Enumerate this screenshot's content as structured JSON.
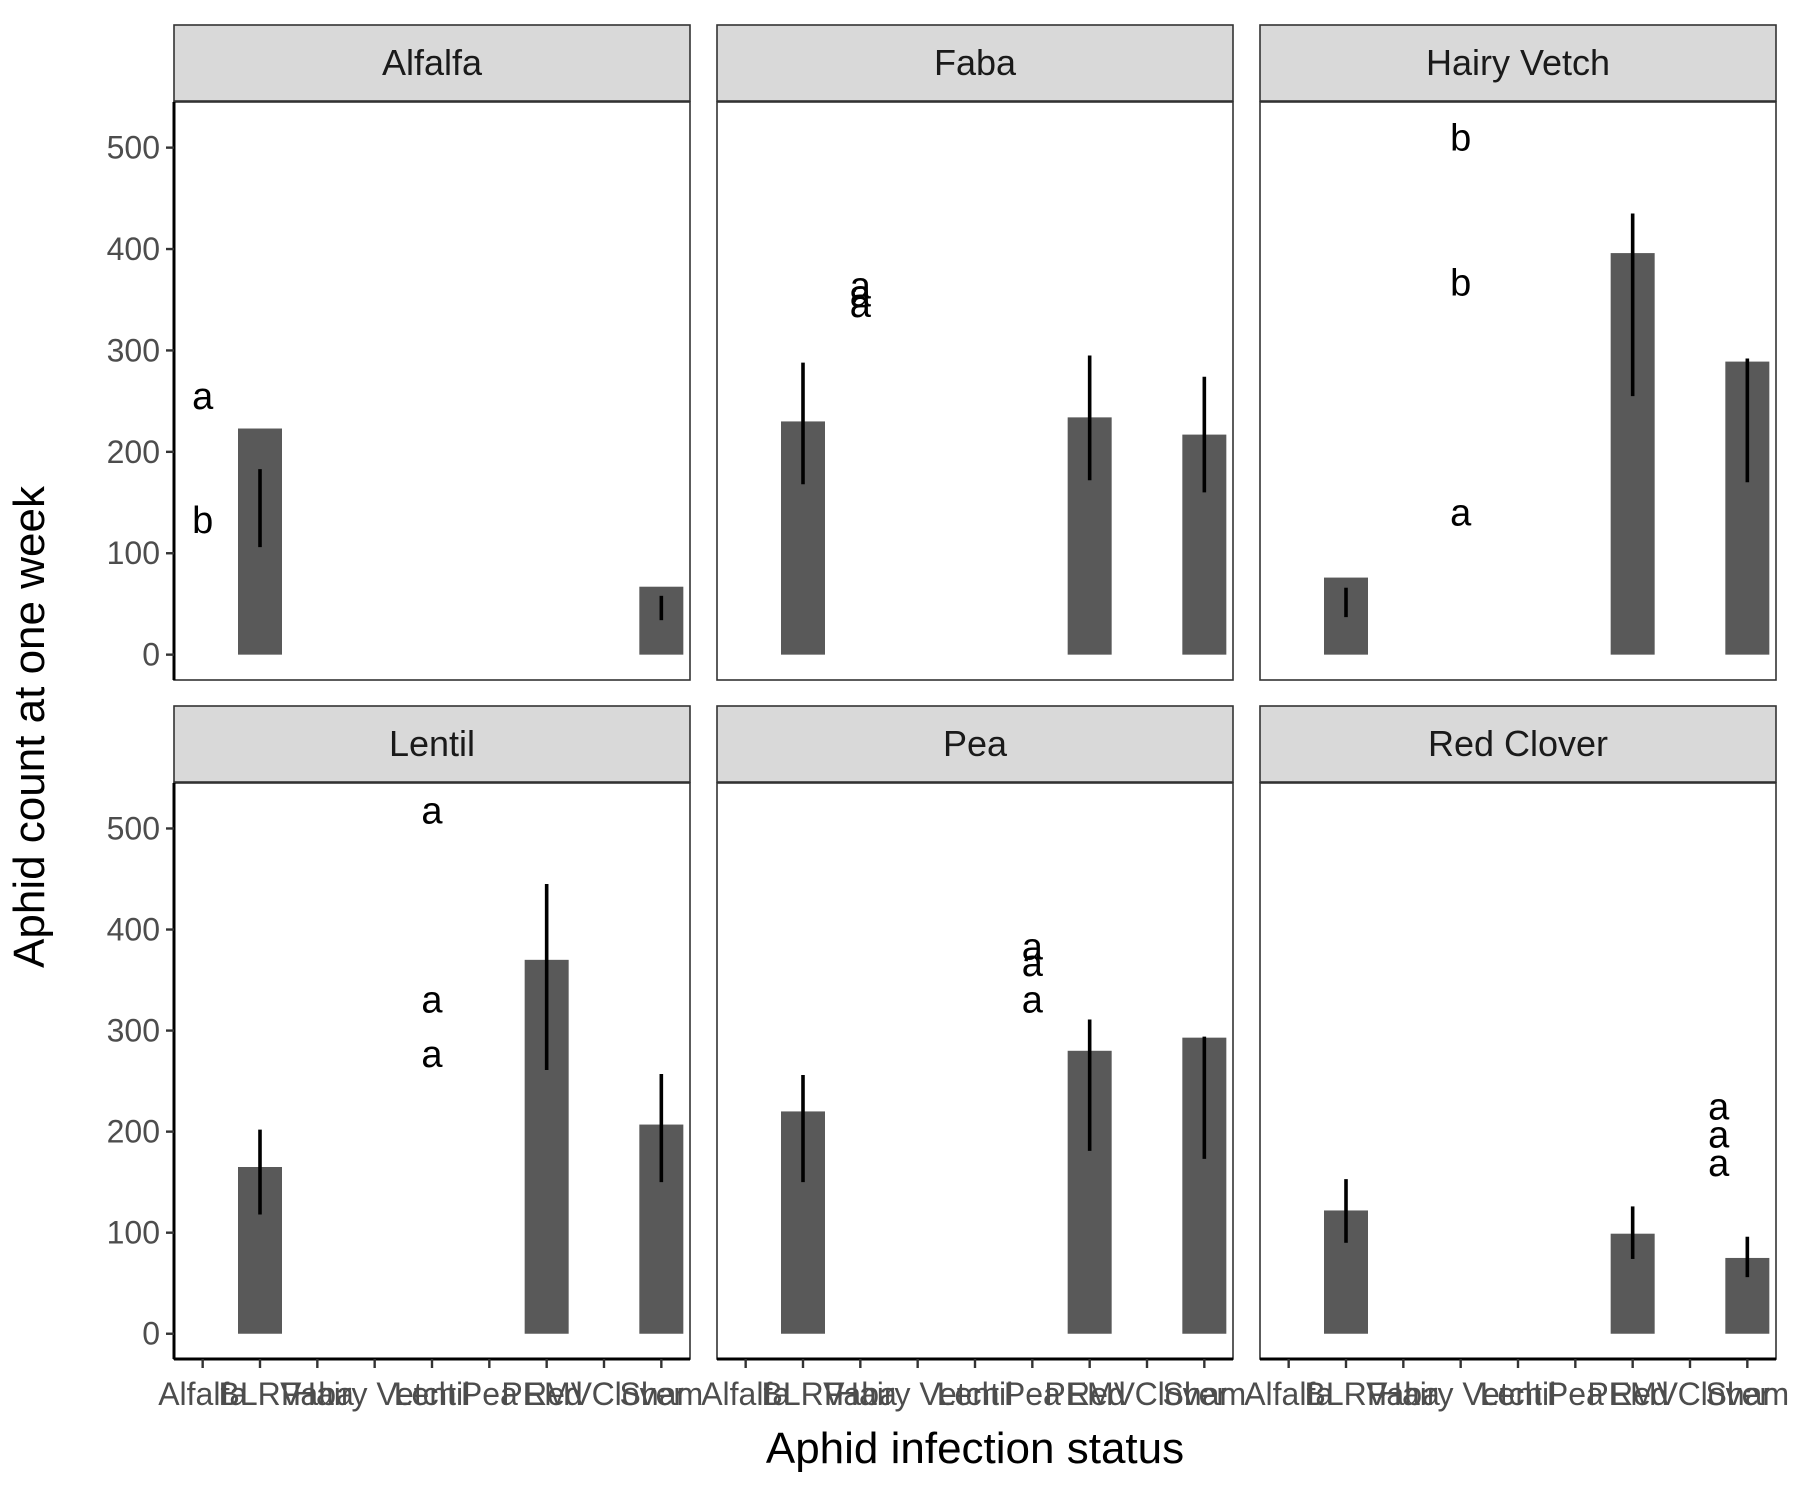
{
  "chart_data": {
    "type": "bar",
    "xlabel": "Aphid infection status",
    "ylabel": "Aphid count at one week",
    "ylim": [
      -25,
      545
    ],
    "yticks": [
      0,
      100,
      200,
      300,
      400,
      500
    ],
    "categories": [
      "Alfalfa",
      "BLRV",
      "Faba",
      "Hairy Vetch",
      "Lentil",
      "Pea",
      "PEMV",
      "Red Clover",
      "Sham"
    ],
    "facet_columns": 3,
    "grid": false,
    "panels": [
      {
        "label": "Alfalfa",
        "bars": [
          {
            "category": "BLRV",
            "value": 223,
            "err_low": 106,
            "err_high": 183
          },
          {
            "category": "Sham",
            "value": 67,
            "err_low": 34,
            "err_high": 58
          }
        ],
        "letters": [
          {
            "text": "a",
            "category": "Alfalfa",
            "y": 255
          },
          {
            "text": "b",
            "category": "Alfalfa",
            "y": 133
          }
        ]
      },
      {
        "label": "Faba",
        "bars": [
          {
            "category": "BLRV",
            "value": 230,
            "err_low": 168,
            "err_high": 288
          },
          {
            "category": "PEMV",
            "value": 234,
            "err_low": 172,
            "err_high": 295
          },
          {
            "category": "Sham",
            "value": 217,
            "err_low": 160,
            "err_high": 274
          }
        ],
        "letters": [
          {
            "text": "a",
            "category": "Faba",
            "y": 364
          },
          {
            "text": "a",
            "category": "Faba",
            "y": 356
          },
          {
            "text": "a",
            "category": "Faba",
            "y": 346
          }
        ]
      },
      {
        "label": "Hairy Vetch",
        "bars": [
          {
            "category": "BLRV",
            "value": 76,
            "err_low": 37,
            "err_high": 66
          },
          {
            "category": "PEMV",
            "value": 396,
            "err_low": 255,
            "err_high": 435
          },
          {
            "category": "Sham",
            "value": 289,
            "err_low": 170,
            "err_high": 292
          }
        ],
        "letters": [
          {
            "text": "b",
            "category": "Hairy Vetch",
            "y": 510
          },
          {
            "text": "b",
            "category": "Hairy Vetch",
            "y": 367
          },
          {
            "text": "a",
            "category": "Hairy Vetch",
            "y": 140
          }
        ]
      },
      {
        "label": "Lentil",
        "bars": [
          {
            "category": "BLRV",
            "value": 165,
            "err_low": 118,
            "err_high": 202
          },
          {
            "category": "PEMV",
            "value": 370,
            "err_low": 261,
            "err_high": 445
          },
          {
            "category": "Sham",
            "value": 207,
            "err_low": 150,
            "err_high": 257
          }
        ],
        "letters": [
          {
            "text": "a",
            "category": "Lentil",
            "y": 518
          },
          {
            "text": "a",
            "category": "Lentil",
            "y": 331
          },
          {
            "text": "a",
            "category": "Lentil",
            "y": 277
          }
        ]
      },
      {
        "label": "Pea",
        "bars": [
          {
            "category": "BLRV",
            "value": 220,
            "err_low": 150,
            "err_high": 256
          },
          {
            "category": "PEMV",
            "value": 280,
            "err_low": 181,
            "err_high": 311
          },
          {
            "category": "Sham",
            "value": 293,
            "err_low": 173,
            "err_high": 294
          }
        ],
        "letters": [
          {
            "text": "a",
            "category": "Pea",
            "y": 383
          },
          {
            "text": "a",
            "category": "Pea",
            "y": 367
          },
          {
            "text": "a",
            "category": "Pea",
            "y": 331
          }
        ]
      },
      {
        "label": "Red Clover",
        "bars": [
          {
            "category": "BLRV",
            "value": 122,
            "err_low": 90,
            "err_high": 153
          },
          {
            "category": "PEMV",
            "value": 99,
            "err_low": 74,
            "err_high": 126
          },
          {
            "category": "Sham",
            "value": 75,
            "err_low": 56,
            "err_high": 96
          }
        ],
        "letters": [
          {
            "text": "a",
            "category": "Sham",
            "y": 225,
            "offset": -0.5
          },
          {
            "text": "a",
            "category": "Sham",
            "y": 197,
            "offset": -0.5
          },
          {
            "text": "a",
            "category": "Sham",
            "y": 169,
            "offset": -0.5
          }
        ]
      }
    ]
  }
}
